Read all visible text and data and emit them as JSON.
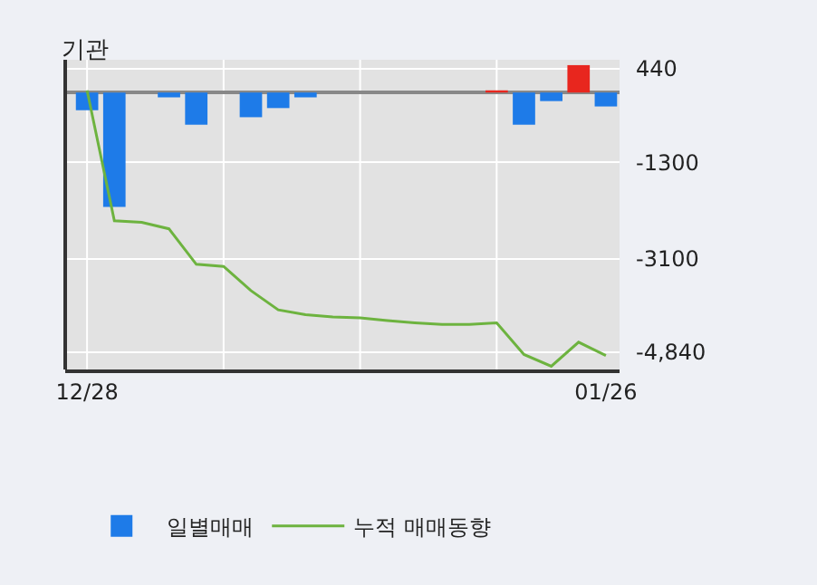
{
  "chart_data": {
    "type": "bar",
    "title": "기관",
    "categories": [
      "12/28",
      null,
      null,
      null,
      null,
      null,
      null,
      null,
      null,
      null,
      null,
      null,
      null,
      null,
      null,
      null,
      null,
      null,
      null,
      "01/26"
    ],
    "series": [
      {
        "name": "일별매매",
        "colors": [
          "#1e7be8",
          "#1e7be8",
          "#1e7be8",
          "#1e7be8",
          "#1e7be8",
          "#1e7be8",
          "#1e7be8",
          "#1e7be8",
          "#1e7be8",
          "#1e7be8",
          "#1e7be8",
          "#1e7be8",
          "#1e7be8",
          "#1e7be8",
          "#1e7be8",
          "#e8261e",
          "#1e7be8",
          "#1e7be8",
          "#e8261e",
          "#1e7be8"
        ],
        "values": [
          -330,
          -2130,
          0,
          -90,
          -600,
          0,
          -460,
          -290,
          -90,
          0,
          0,
          0,
          0,
          0,
          0,
          40,
          -600,
          -160,
          510,
          -260
        ]
      },
      {
        "name": "누적 매매동향",
        "type": "line",
        "color": "#6db33f",
        "values": [
          40,
          -2390,
          -2420,
          -2540,
          -3200,
          -3240,
          -3690,
          -4050,
          -4140,
          -4180,
          -4200,
          -4250,
          -4290,
          -4320,
          -4320,
          -4290,
          -4880,
          -5100,
          -4650,
          -4900
        ]
      }
    ],
    "ylim": [
      -5160,
      610
    ],
    "yticks": [
      440,
      -1300,
      -3100,
      {
        "value": -4840,
        "label": "-4,840"
      }
    ],
    "grid": true,
    "legend": "bottom",
    "marker": "none",
    "line_style": "solid"
  }
}
